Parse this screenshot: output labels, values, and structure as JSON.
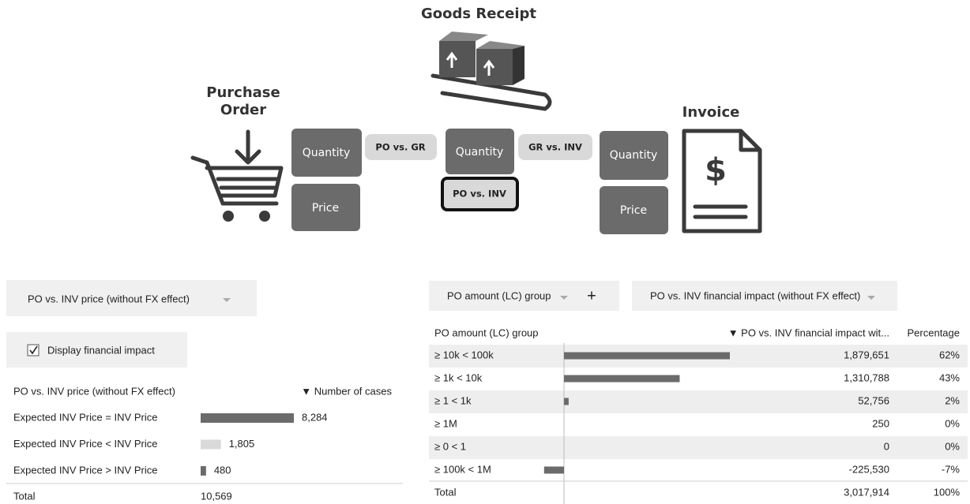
{
  "diagram": {
    "purchase_order": [
      "Purchase",
      "Order"
    ],
    "goods_receipt": "Goods Receipt",
    "invoice": "Invoice",
    "po_quantity": "Quantity",
    "po_price": "Price",
    "gr_quantity": "Quantity",
    "inv_quantity": "Quantity",
    "inv_price": "Price",
    "po_vs_gr": "PO vs. GR",
    "gr_vs_inv": "GR vs. INV",
    "po_vs_inv": "PO vs. INV"
  },
  "left_panel": {
    "dropdown": "PO vs. INV price (without FX effect)",
    "checkbox": {
      "label": "Display financial impact",
      "checked": true
    },
    "table": {
      "headers": [
        "PO vs. INV price (without FX effect)",
        "▼ Number of cases"
      ],
      "rows": [
        "Expected INV Price  = INV Price",
        "Expected INV Price  < INV Price",
        "Expected INV Price  > INV Price"
      ],
      "values": [
        8284,
        1805,
        480
      ],
      "value_labels": [
        "8,284",
        "1,805",
        "480"
      ],
      "colors": [
        "#6b6b6b",
        "#d9d9d9",
        "#6b6b6b"
      ],
      "total": [
        "Total",
        "10,569"
      ]
    }
  },
  "right_panel": {
    "dropdown_1": "PO amount (LC) group",
    "add": "+",
    "dropdown_2": "PO vs. INV financial impact (without FX effect)",
    "table": {
      "headers": [
        "PO amount (LC) group",
        "▼ PO vs. INV financial impact wit...",
        "Percentage"
      ],
      "rows": [
        "≥ 10k < 100k",
        "≥ 1k < 10k",
        "≥ 1 < 1k",
        "≥ 1M",
        "≥ 0 < 1",
        "≥ 100k < 1M"
      ],
      "values": [
        1879651,
        1310788,
        52756,
        250,
        0,
        -225530
      ],
      "value_labels": [
        "1,879,651",
        "1,310,788",
        "52,756",
        "250",
        "0",
        "-225,530"
      ],
      "percentages": [
        "62%",
        "43%",
        "2%",
        "0%",
        "0%",
        "-7%"
      ],
      "color": "#6b6b6b",
      "total": [
        "Total",
        "3,017,914",
        "100%"
      ]
    }
  }
}
